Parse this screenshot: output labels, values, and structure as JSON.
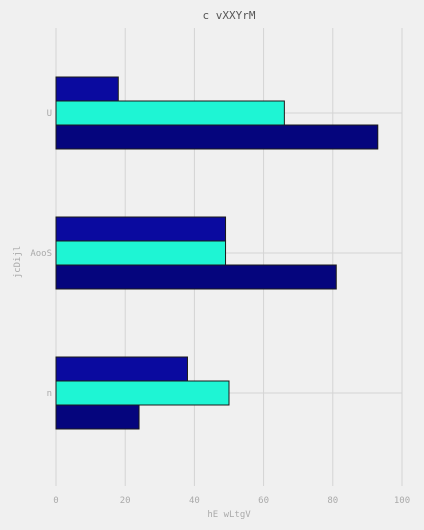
{
  "chart_data": {
    "type": "bar",
    "orientation": "horizontal",
    "title": "c vXXYrM",
    "xlabel": "hE wLtgV",
    "ylabel": "jcDijl",
    "categories": [
      "U",
      "AooS",
      "n"
    ],
    "xlim": [
      0,
      100
    ],
    "xticks": [
      0,
      20,
      40,
      60,
      80,
      100
    ],
    "grid": true,
    "series": [
      {
        "color": "#0a0a9f",
        "values": [
          18,
          49,
          38
        ]
      },
      {
        "color": "#1ef5d4",
        "values": [
          66,
          49,
          50
        ]
      },
      {
        "color": "#05057d",
        "values": [
          93,
          81,
          24
        ]
      }
    ]
  }
}
